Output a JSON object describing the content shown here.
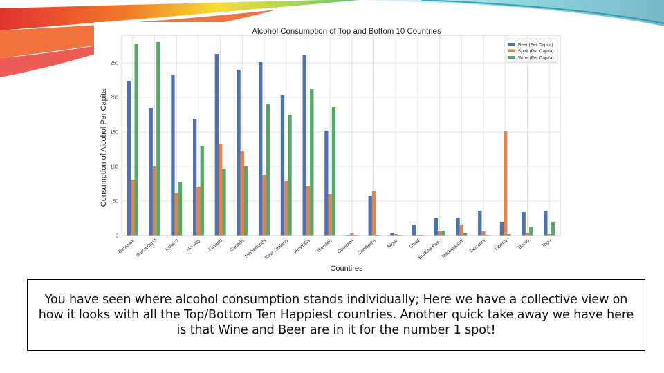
{
  "colors": {
    "beer": "#4c72b0",
    "spirit": "#dd8452",
    "wine": "#55a868"
  },
  "caption": "You have seen where alcohol consumption stands individually; Here we have a collective view on how it looks with all the Top/Bottom Ten Happiest countries.  Another quick take away we have here is that Wine  and Beer are in it for the number 1 spot!",
  "chart_data": {
    "type": "bar",
    "title": "Alcohol Consumption of Top and Bottom 10 Countries",
    "xlabel": "Countires",
    "ylabel": "Consumption of Alcohol Per Capita",
    "ylim": [
      0,
      290
    ],
    "yticks": [
      0,
      50,
      100,
      150,
      200,
      250
    ],
    "grid": true,
    "legend_position": "top-right",
    "categories": [
      "Denmark",
      "Switzerland",
      "Iceland",
      "Norway",
      "Finland",
      "Canada",
      "Netherlands",
      "New Zealand",
      "Australia",
      "Sweden",
      "Comoros",
      "Cambodia",
      "Niger",
      "Chad",
      "Burkina Faso",
      "Madagascar",
      "Tanzania",
      "Liberia",
      "Benin",
      "Togo"
    ],
    "series": [
      {
        "name": "Beer (Per Capita)",
        "color_key": "beer",
        "values": [
          224,
          185,
          233,
          169,
          263,
          240,
          251,
          203,
          261,
          152,
          1,
          57,
          3,
          15,
          25,
          26,
          36,
          19,
          34,
          36
        ]
      },
      {
        "name": "Spirit (Per Capita)",
        "color_key": "spirit",
        "values": [
          81,
          100,
          61,
          71,
          133,
          122,
          88,
          79,
          72,
          60,
          3,
          65,
          2,
          1,
          7,
          15,
          6,
          152,
          4,
          2
        ]
      },
      {
        "name": "Wine (Per Capita)",
        "color_key": "wine",
        "values": [
          278,
          280,
          78,
          129,
          97,
          100,
          190,
          175,
          212,
          186,
          1,
          1,
          1,
          1,
          7,
          4,
          1,
          2,
          13,
          19
        ]
      }
    ]
  }
}
